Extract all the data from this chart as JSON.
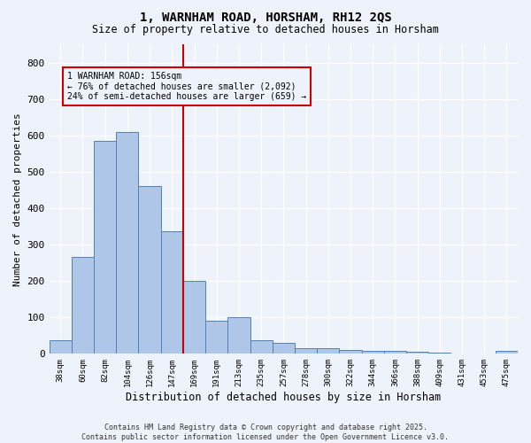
{
  "title_line1": "1, WARNHAM ROAD, HORSHAM, RH12 2QS",
  "title_line2": "Size of property relative to detached houses in Horsham",
  "xlabel": "Distribution of detached houses by size in Horsham",
  "ylabel": "Number of detached properties",
  "categories": [
    "38sqm",
    "60sqm",
    "82sqm",
    "104sqm",
    "126sqm",
    "147sqm",
    "169sqm",
    "191sqm",
    "213sqm",
    "235sqm",
    "257sqm",
    "278sqm",
    "300sqm",
    "322sqm",
    "344sqm",
    "366sqm",
    "388sqm",
    "409sqm",
    "431sqm",
    "453sqm",
    "475sqm"
  ],
  "values": [
    37,
    265,
    585,
    610,
    460,
    337,
    200,
    92,
    100,
    37,
    30,
    15,
    15,
    10,
    8,
    7,
    5,
    3,
    2,
    1,
    7
  ],
  "bar_color": "#aec6e8",
  "bar_edge_color": "#5580b0",
  "background_color": "#eef2fa",
  "grid_color": "#ffffff",
  "vline_x_index": 5.5,
  "vline_color": "#cc0000",
  "annotation_text": "1 WARNHAM ROAD: 156sqm\n← 76% of detached houses are smaller (2,092)\n24% of semi-detached houses are larger (659) →",
  "annotation_box_color": "#cc0000",
  "ylim": [
    0,
    850
  ],
  "yticks": [
    0,
    100,
    200,
    300,
    400,
    500,
    600,
    700,
    800
  ],
  "footer_line1": "Contains HM Land Registry data © Crown copyright and database right 2025.",
  "footer_line2": "Contains public sector information licensed under the Open Government Licence v3.0."
}
